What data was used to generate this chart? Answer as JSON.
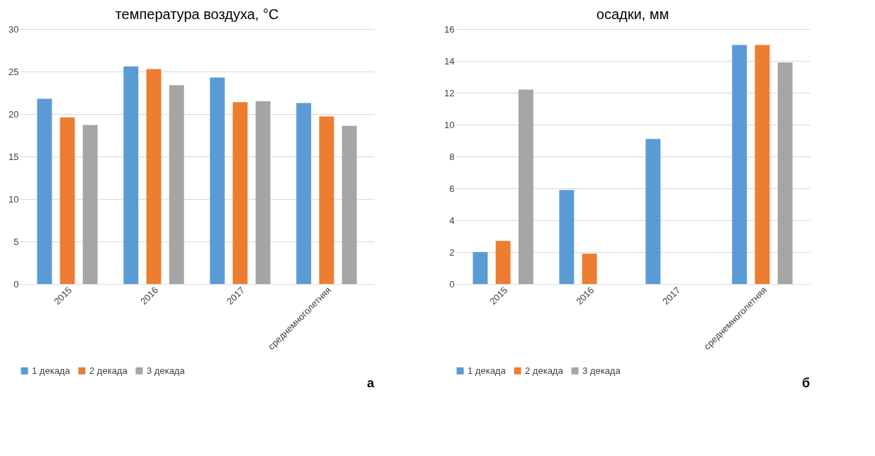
{
  "chart_data": [
    {
      "type": "bar",
      "title": "температура воздуха, °C",
      "categories": [
        "2015",
        "2016",
        "2017",
        "среднемноголетняя"
      ],
      "series": [
        {
          "name": "1 декада",
          "color": "#5b9bd5",
          "values": [
            21.8,
            25.6,
            24.3,
            21.3
          ]
        },
        {
          "name": "2 декада",
          "color": "#ed7d31",
          "values": [
            19.6,
            25.3,
            21.4,
            19.7
          ]
        },
        {
          "name": "3 декада",
          "color": "#a5a5a5",
          "values": [
            18.7,
            23.4,
            21.5,
            18.6
          ]
        }
      ],
      "ylim": [
        0,
        30
      ],
      "yticks": [
        0,
        5,
        10,
        15,
        20,
        25,
        30
      ],
      "grid": "y",
      "legend": "bottom",
      "annotations": [
        "а"
      ]
    },
    {
      "type": "bar",
      "title": "осадки, мм",
      "categories": [
        "2015",
        "2016",
        "2017",
        "среднемноголетняя"
      ],
      "series": [
        {
          "name": "1 декада",
          "color": "#5b9bd5",
          "values": [
            2.0,
            5.9,
            9.1,
            15.0
          ]
        },
        {
          "name": "2 декада",
          "color": "#ed7d31",
          "values": [
            2.7,
            1.9,
            0,
            15.0
          ]
        },
        {
          "name": "3 декада",
          "color": "#a5a5a5",
          "values": [
            12.2,
            0,
            0,
            13.9
          ]
        }
      ],
      "ylim": [
        0,
        16
      ],
      "yticks": [
        0,
        2,
        4,
        6,
        8,
        10,
        12,
        14,
        16
      ],
      "grid": "y",
      "legend": "bottom",
      "annotations": [
        "б"
      ]
    }
  ]
}
